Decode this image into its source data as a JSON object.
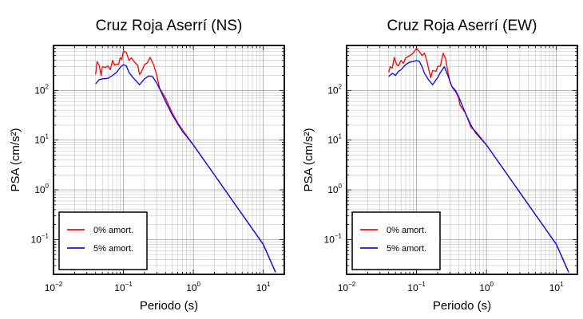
{
  "chart_data": [
    {
      "type": "line",
      "title": "Cruz Roja Aserrí (NS)",
      "xlabel": "Periodo (s)",
      "ylabel": "PSA (cm/s²)",
      "xscale": "log",
      "yscale": "log",
      "xlim": [
        0.01,
        20
      ],
      "ylim": [
        0.02,
        800
      ],
      "grid": true,
      "legend_position": "bottom-left",
      "x_ticks": [
        {
          "v": 0.01,
          "b": "10",
          "e": "−2"
        },
        {
          "v": 0.1,
          "b": "10",
          "e": "−1"
        },
        {
          "v": 1,
          "b": "10",
          "e": "0"
        },
        {
          "v": 10,
          "b": "10",
          "e": "1"
        }
      ],
      "y_ticks": [
        {
          "v": 0.1,
          "b": "10",
          "e": "−1"
        },
        {
          "v": 1,
          "b": "10",
          "e": "0"
        },
        {
          "v": 10,
          "b": "10",
          "e": "1"
        },
        {
          "v": 100,
          "b": "10",
          "e": "2"
        }
      ],
      "series": [
        {
          "name": "0% amort.",
          "color": "#ee1111",
          "points": [
            [
              0.04,
              210
            ],
            [
              0.042,
              380
            ],
            [
              0.045,
              320
            ],
            [
              0.048,
              200
            ],
            [
              0.05,
              300
            ],
            [
              0.055,
              290
            ],
            [
              0.06,
              310
            ],
            [
              0.065,
              260
            ],
            [
              0.07,
              400
            ],
            [
              0.075,
              320
            ],
            [
              0.08,
              340
            ],
            [
              0.085,
              330
            ],
            [
              0.09,
              450
            ],
            [
              0.095,
              420
            ],
            [
              0.1,
              620
            ],
            [
              0.11,
              580
            ],
            [
              0.12,
              400
            ],
            [
              0.13,
              450
            ],
            [
              0.14,
              390
            ],
            [
              0.15,
              350
            ],
            [
              0.16,
              320
            ],
            [
              0.17,
              210
            ],
            [
              0.18,
              230
            ],
            [
              0.2,
              330
            ],
            [
              0.22,
              360
            ],
            [
              0.24,
              460
            ],
            [
              0.27,
              330
            ],
            [
              0.3,
              200
            ],
            [
              0.33,
              110
            ],
            [
              0.4,
              70
            ],
            [
              0.5,
              35
            ],
            [
              0.6,
              22
            ],
            [
              0.7,
              16
            ],
            [
              1,
              8
            ],
            [
              2,
              2
            ],
            [
              5,
              0.32
            ],
            [
              10,
              0.08
            ],
            [
              15,
              0.022
            ]
          ]
        },
        {
          "name": "5% amort.",
          "color": "#1111ee",
          "points": [
            [
              0.04,
              135
            ],
            [
              0.045,
              165
            ],
            [
              0.05,
              170
            ],
            [
              0.06,
              175
            ],
            [
              0.07,
              200
            ],
            [
              0.08,
              230
            ],
            [
              0.09,
              290
            ],
            [
              0.1,
              330
            ],
            [
              0.11,
              310
            ],
            [
              0.12,
              230
            ],
            [
              0.14,
              175
            ],
            [
              0.17,
              130
            ],
            [
              0.2,
              170
            ],
            [
              0.23,
              195
            ],
            [
              0.26,
              190
            ],
            [
              0.3,
              140
            ],
            [
              0.35,
              90
            ],
            [
              0.4,
              60
            ],
            [
              0.5,
              32
            ],
            [
              0.6,
              21
            ],
            [
              0.7,
              15
            ],
            [
              1,
              8
            ],
            [
              2,
              2
            ],
            [
              5,
              0.32
            ],
            [
              10,
              0.08
            ],
            [
              15,
              0.022
            ]
          ]
        }
      ]
    },
    {
      "type": "line",
      "title": "Cruz Roja Aserrí (EW)",
      "xlabel": "Periodo (s)",
      "ylabel": "PSA (cm/s²)",
      "xscale": "log",
      "yscale": "log",
      "xlim": [
        0.01,
        20
      ],
      "ylim": [
        0.02,
        800
      ],
      "grid": true,
      "legend_position": "bottom-left",
      "x_ticks": [
        {
          "v": 0.01,
          "b": "10",
          "e": "−2"
        },
        {
          "v": 0.1,
          "b": "10",
          "e": "−1"
        },
        {
          "v": 1,
          "b": "10",
          "e": "0"
        },
        {
          "v": 10,
          "b": "10",
          "e": "1"
        }
      ],
      "y_ticks": [
        {
          "v": 0.1,
          "b": "10",
          "e": "−1"
        },
        {
          "v": 1,
          "b": "10",
          "e": "0"
        },
        {
          "v": 10,
          "b": "10",
          "e": "1"
        },
        {
          "v": 100,
          "b": "10",
          "e": "2"
        }
      ],
      "series": [
        {
          "name": "0% amort.",
          "color": "#ee1111",
          "points": [
            [
              0.04,
              230
            ],
            [
              0.042,
              300
            ],
            [
              0.045,
              280
            ],
            [
              0.048,
              460
            ],
            [
              0.052,
              330
            ],
            [
              0.055,
              310
            ],
            [
              0.06,
              400
            ],
            [
              0.065,
              350
            ],
            [
              0.07,
              450
            ],
            [
              0.08,
              500
            ],
            [
              0.09,
              560
            ],
            [
              0.1,
              700
            ],
            [
              0.11,
              600
            ],
            [
              0.12,
              500
            ],
            [
              0.13,
              560
            ],
            [
              0.14,
              400
            ],
            [
              0.15,
              260
            ],
            [
              0.16,
              180
            ],
            [
              0.17,
              250
            ],
            [
              0.19,
              240
            ],
            [
              0.2,
              300
            ],
            [
              0.22,
              310
            ],
            [
              0.24,
              560
            ],
            [
              0.26,
              440
            ],
            [
              0.28,
              240
            ],
            [
              0.3,
              150
            ],
            [
              0.33,
              110
            ],
            [
              0.37,
              90
            ],
            [
              0.4,
              70
            ],
            [
              0.42,
              50
            ],
            [
              0.5,
              35
            ],
            [
              0.55,
              25
            ],
            [
              0.6,
              18
            ],
            [
              0.7,
              15
            ],
            [
              1,
              8
            ],
            [
              2,
              2
            ],
            [
              5,
              0.32
            ],
            [
              10,
              0.08
            ],
            [
              15,
              0.022
            ]
          ]
        },
        {
          "name": "5% amort.",
          "color": "#1111ee",
          "points": [
            [
              0.04,
              190
            ],
            [
              0.045,
              220
            ],
            [
              0.05,
              200
            ],
            [
              0.055,
              240
            ],
            [
              0.06,
              260
            ],
            [
              0.07,
              330
            ],
            [
              0.08,
              370
            ],
            [
              0.09,
              380
            ],
            [
              0.1,
              400
            ],
            [
              0.11,
              380
            ],
            [
              0.12,
              300
            ],
            [
              0.13,
              220
            ],
            [
              0.15,
              160
            ],
            [
              0.17,
              130
            ],
            [
              0.2,
              180
            ],
            [
              0.22,
              230
            ],
            [
              0.25,
              300
            ],
            [
              0.28,
              200
            ],
            [
              0.32,
              120
            ],
            [
              0.36,
              100
            ],
            [
              0.4,
              75
            ],
            [
              0.45,
              50
            ],
            [
              0.5,
              35
            ],
            [
              0.6,
              20
            ],
            [
              0.7,
              14
            ],
            [
              1,
              8
            ],
            [
              2,
              2
            ],
            [
              5,
              0.32
            ],
            [
              10,
              0.08
            ],
            [
              15,
              0.022
            ]
          ]
        }
      ]
    }
  ]
}
